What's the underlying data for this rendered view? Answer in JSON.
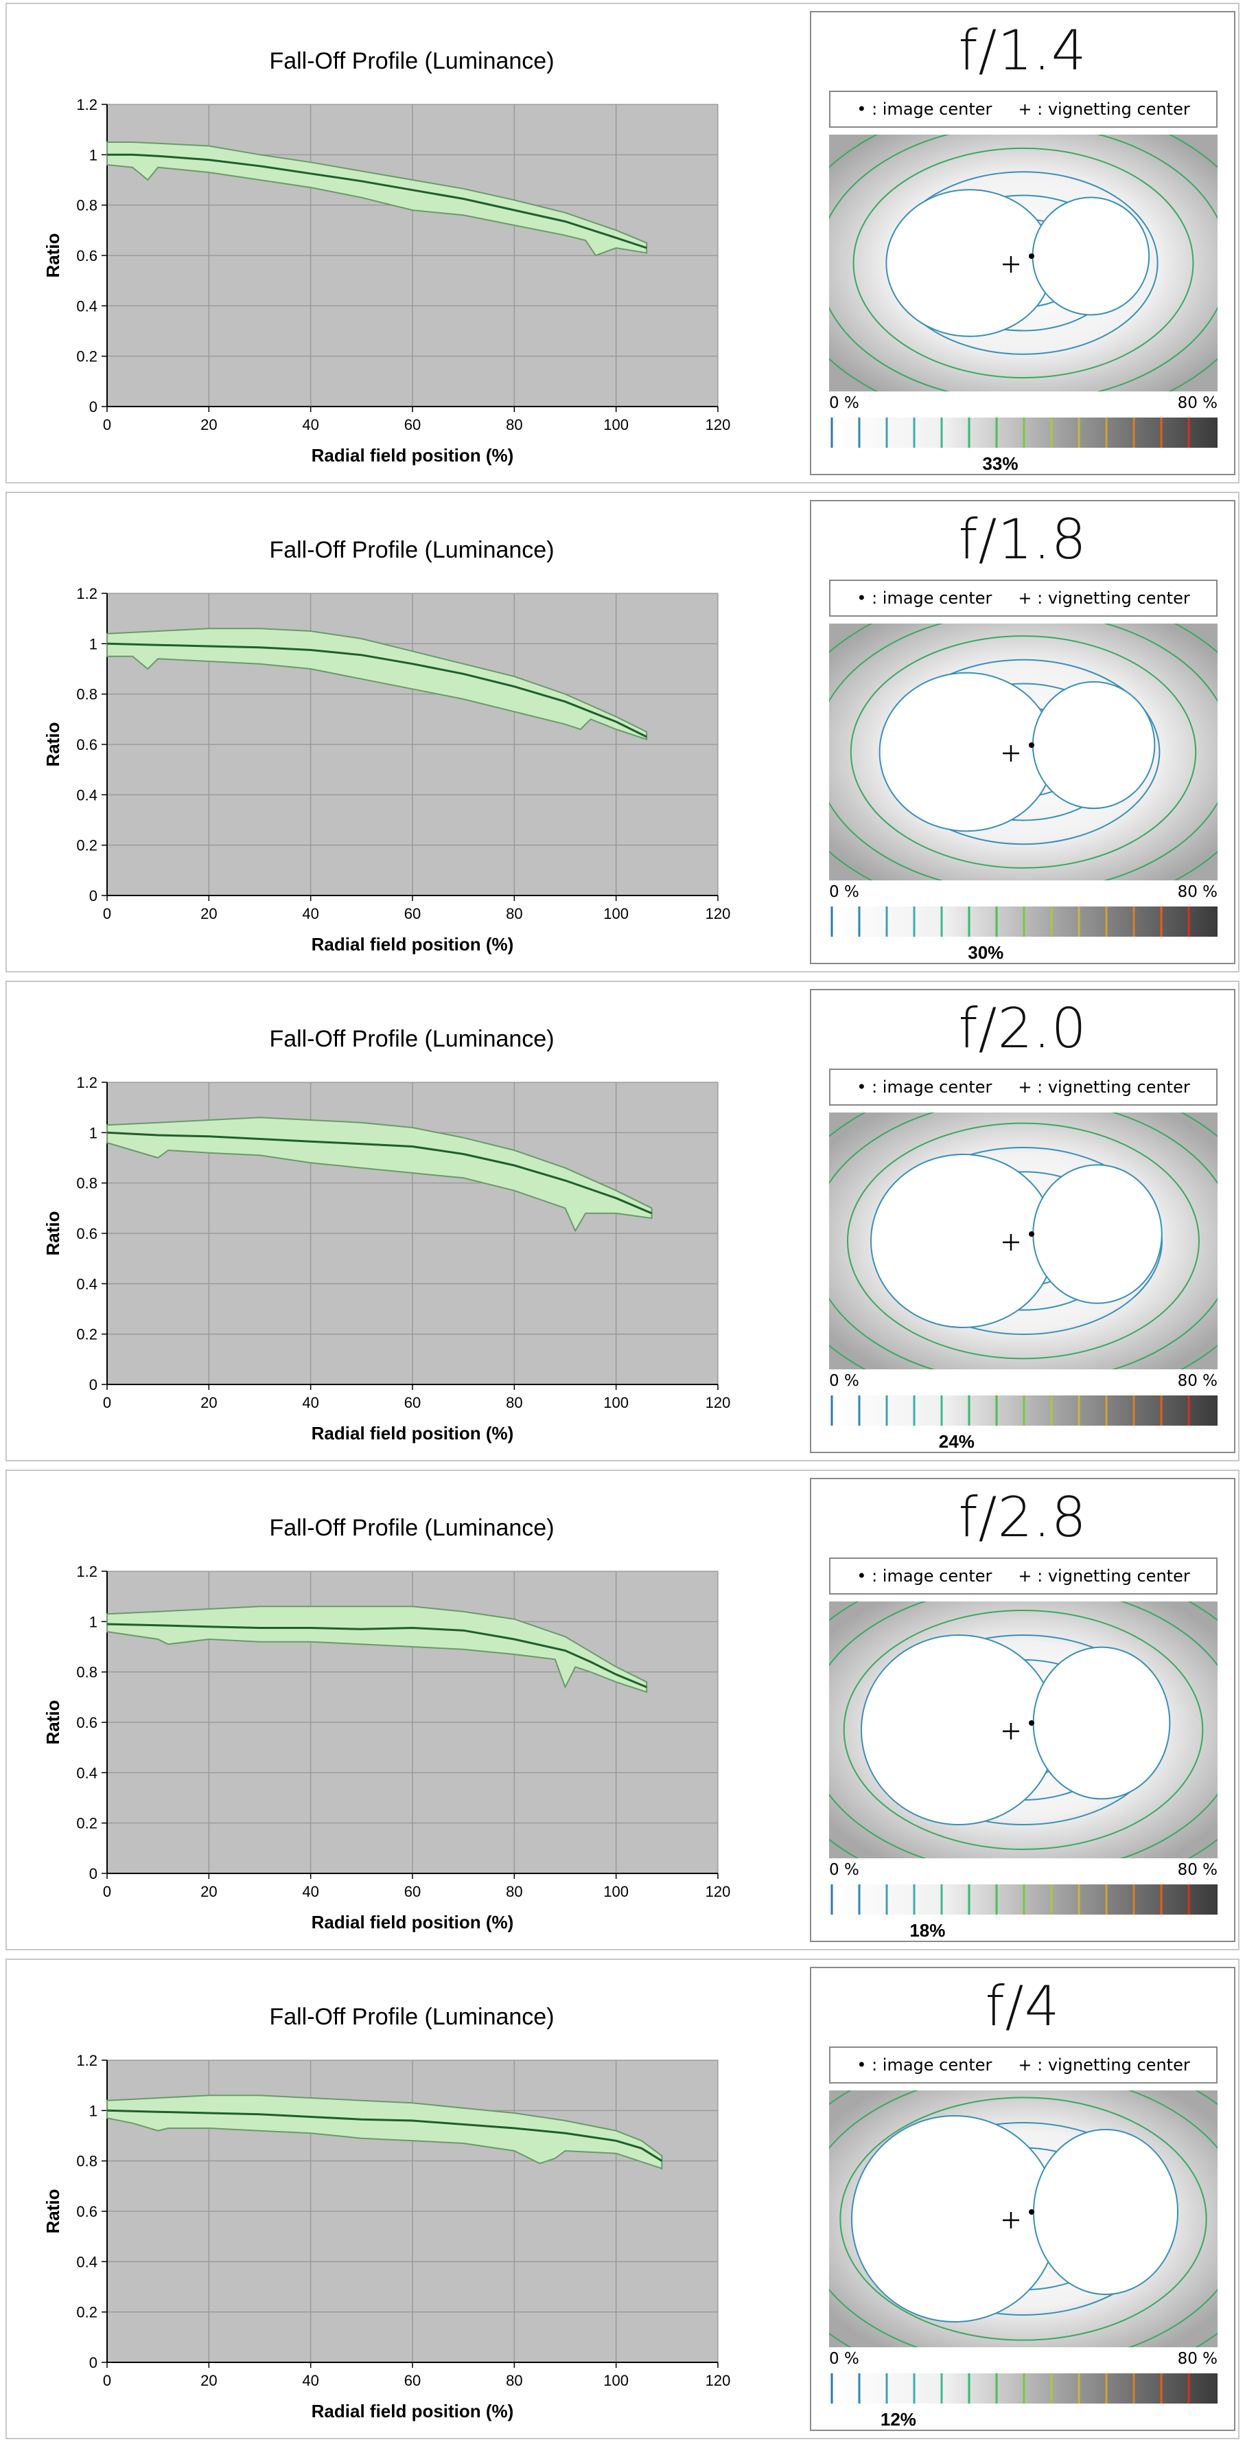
{
  "common": {
    "chart_title": "Fall-Off Profile (Luminance)",
    "xlabel": "Radial field position (%)",
    "ylabel": "Ratio",
    "legend_image_center": "• : image center",
    "legend_vignetting_center": "+ : vignetting center",
    "scale_min": "0 %",
    "scale_max": "80 %",
    "colors": {
      "plot_bg": "#c0c0c0",
      "grid": "#9a9a9a",
      "band_fill": "#c8ecc0",
      "band_edge": "#6a9a6a",
      "curve": "#1e5e2e",
      "contour_blue": "#3a8fb8",
      "contour_green": "#3aa860"
    }
  },
  "panels": [
    {
      "fnumber": "f/1.4",
      "vignetting": "33%",
      "chart_data": {
        "type": "line",
        "title": "Fall-Off Profile (Luminance)",
        "xlabel": "Radial field position (%)",
        "ylabel": "Ratio",
        "xlim": [
          0,
          120
        ],
        "ylim": [
          0,
          1.2
        ],
        "xticks": [
          0,
          20,
          40,
          60,
          80,
          100,
          120
        ],
        "yticks": [
          0,
          0.2,
          0.4,
          0.6,
          0.8,
          1,
          1.2
        ],
        "grid": true,
        "series": [
          {
            "role": "mean",
            "x": [
              0,
              5,
              10,
              20,
              30,
              40,
              50,
              60,
              70,
              80,
              90,
              100,
              106
            ],
            "y": [
              1.0,
              1.0,
              0.995,
              0.98,
              0.955,
              0.925,
              0.895,
              0.86,
              0.825,
              0.78,
              0.735,
              0.67,
              0.63
            ]
          },
          {
            "role": "upper",
            "x": [
              0,
              5,
              10,
              20,
              30,
              40,
              50,
              60,
              70,
              80,
              90,
              100,
              106
            ],
            "y": [
              1.05,
              1.05,
              1.045,
              1.035,
              1.0,
              0.97,
              0.935,
              0.9,
              0.865,
              0.82,
              0.77,
              0.7,
              0.65
            ]
          },
          {
            "role": "lower",
            "x": [
              0,
              5,
              8,
              10,
              20,
              30,
              40,
              50,
              60,
              70,
              80,
              90,
              94,
              96,
              100,
              106
            ],
            "y": [
              0.96,
              0.95,
              0.9,
              0.95,
              0.93,
              0.9,
              0.87,
              0.83,
              0.78,
              0.76,
              0.72,
              0.68,
              0.66,
              0.6,
              0.63,
              0.61
            ]
          }
        ]
      }
    },
    {
      "fnumber": "f/1.8",
      "vignetting": "30%",
      "chart_data": {
        "type": "line",
        "title": "Fall-Off Profile (Luminance)",
        "xlabel": "Radial field position (%)",
        "ylabel": "Ratio",
        "xlim": [
          0,
          120
        ],
        "ylim": [
          0,
          1.2
        ],
        "xticks": [
          0,
          20,
          40,
          60,
          80,
          100,
          120
        ],
        "yticks": [
          0,
          0.2,
          0.4,
          0.6,
          0.8,
          1,
          1.2
        ],
        "grid": true,
        "series": [
          {
            "role": "mean",
            "x": [
              0,
              10,
              20,
              30,
              40,
              50,
              60,
              70,
              80,
              90,
              100,
              106
            ],
            "y": [
              1.0,
              0.995,
              0.99,
              0.985,
              0.975,
              0.955,
              0.92,
              0.88,
              0.83,
              0.77,
              0.69,
              0.63
            ]
          },
          {
            "role": "upper",
            "x": [
              0,
              10,
              20,
              30,
              40,
              50,
              60,
              70,
              80,
              90,
              100,
              106
            ],
            "y": [
              1.04,
              1.05,
              1.06,
              1.06,
              1.05,
              1.02,
              0.97,
              0.92,
              0.87,
              0.8,
              0.71,
              0.65
            ]
          },
          {
            "role": "lower",
            "x": [
              0,
              5,
              8,
              10,
              20,
              30,
              40,
              50,
              60,
              70,
              80,
              90,
              93,
              95,
              100,
              106
            ],
            "y": [
              0.95,
              0.95,
              0.9,
              0.94,
              0.93,
              0.92,
              0.9,
              0.86,
              0.82,
              0.78,
              0.73,
              0.68,
              0.66,
              0.7,
              0.66,
              0.62
            ]
          }
        ]
      }
    },
    {
      "fnumber": "f/2.0",
      "vignetting": "24%",
      "chart_data": {
        "type": "line",
        "title": "Fall-Off Profile (Luminance)",
        "xlabel": "Radial field position (%)",
        "ylabel": "Ratio",
        "xlim": [
          0,
          120
        ],
        "ylim": [
          0,
          1.2
        ],
        "xticks": [
          0,
          20,
          40,
          60,
          80,
          100,
          120
        ],
        "yticks": [
          0,
          0.2,
          0.4,
          0.6,
          0.8,
          1,
          1.2
        ],
        "grid": true,
        "series": [
          {
            "role": "mean",
            "x": [
              0,
              10,
              20,
              30,
              40,
              50,
              60,
              70,
              80,
              90,
              100,
              107
            ],
            "y": [
              1.0,
              0.99,
              0.985,
              0.975,
              0.965,
              0.955,
              0.945,
              0.915,
              0.87,
              0.81,
              0.74,
              0.68
            ]
          },
          {
            "role": "upper",
            "x": [
              0,
              10,
              20,
              30,
              40,
              50,
              60,
              70,
              80,
              90,
              100,
              107
            ],
            "y": [
              1.03,
              1.04,
              1.05,
              1.06,
              1.05,
              1.04,
              1.02,
              0.98,
              0.93,
              0.86,
              0.77,
              0.7
            ]
          },
          {
            "role": "lower",
            "x": [
              0,
              5,
              10,
              12,
              20,
              30,
              40,
              50,
              60,
              70,
              80,
              90,
              92,
              94,
              100,
              107
            ],
            "y": [
              0.96,
              0.93,
              0.9,
              0.93,
              0.92,
              0.91,
              0.88,
              0.86,
              0.84,
              0.82,
              0.77,
              0.7,
              0.61,
              0.68,
              0.68,
              0.66
            ]
          }
        ]
      }
    },
    {
      "fnumber": "f/2.8",
      "vignetting": "18%",
      "chart_data": {
        "type": "line",
        "title": "Fall-Off Profile (Luminance)",
        "xlabel": "Radial field position (%)",
        "ylabel": "Ratio",
        "xlim": [
          0,
          120
        ],
        "ylim": [
          0,
          1.2
        ],
        "xticks": [
          0,
          20,
          40,
          60,
          80,
          100,
          120
        ],
        "yticks": [
          0,
          0.2,
          0.4,
          0.6,
          0.8,
          1,
          1.2
        ],
        "grid": true,
        "series": [
          {
            "role": "mean",
            "x": [
              0,
              10,
              20,
              30,
              40,
              50,
              60,
              70,
              80,
              90,
              95,
              100,
              106
            ],
            "y": [
              0.99,
              0.985,
              0.98,
              0.975,
              0.975,
              0.97,
              0.975,
              0.965,
              0.93,
              0.885,
              0.84,
              0.79,
              0.74
            ]
          },
          {
            "role": "upper",
            "x": [
              0,
              10,
              20,
              30,
              40,
              50,
              60,
              70,
              80,
              90,
              95,
              100,
              106
            ],
            "y": [
              1.03,
              1.04,
              1.05,
              1.06,
              1.06,
              1.06,
              1.06,
              1.04,
              1.01,
              0.94,
              0.88,
              0.82,
              0.76
            ]
          },
          {
            "role": "lower",
            "x": [
              0,
              10,
              12,
              20,
              30,
              40,
              50,
              60,
              70,
              80,
              88,
              90,
              92,
              95,
              100,
              106
            ],
            "y": [
              0.96,
              0.93,
              0.91,
              0.93,
              0.92,
              0.92,
              0.91,
              0.9,
              0.89,
              0.87,
              0.85,
              0.74,
              0.82,
              0.8,
              0.76,
              0.72
            ]
          }
        ]
      }
    },
    {
      "fnumber": "f/4",
      "vignetting": "12%",
      "chart_data": {
        "type": "line",
        "title": "Fall-Off Profile (Luminance)",
        "xlabel": "Radial field position (%)",
        "ylabel": "Ratio",
        "xlim": [
          0,
          120
        ],
        "ylim": [
          0,
          1.2
        ],
        "xticks": [
          0,
          20,
          40,
          60,
          80,
          100,
          120
        ],
        "yticks": [
          0,
          0.2,
          0.4,
          0.6,
          0.8,
          1,
          1.2
        ],
        "grid": true,
        "series": [
          {
            "role": "mean",
            "x": [
              0,
              10,
              20,
              30,
              40,
              50,
              60,
              70,
              80,
              90,
              100,
              105,
              109
            ],
            "y": [
              1.0,
              0.995,
              0.99,
              0.985,
              0.975,
              0.965,
              0.96,
              0.945,
              0.93,
              0.91,
              0.88,
              0.85,
              0.8
            ]
          },
          {
            "role": "upper",
            "x": [
              0,
              10,
              20,
              30,
              40,
              50,
              60,
              70,
              80,
              90,
              100,
              105,
              109
            ],
            "y": [
              1.04,
              1.05,
              1.06,
              1.06,
              1.05,
              1.04,
              1.03,
              1.01,
              0.99,
              0.96,
              0.92,
              0.88,
              0.82
            ]
          },
          {
            "role": "lower",
            "x": [
              0,
              5,
              10,
              12,
              20,
              30,
              40,
              50,
              60,
              70,
              80,
              85,
              88,
              90,
              100,
              109
            ],
            "y": [
              0.97,
              0.95,
              0.92,
              0.93,
              0.93,
              0.92,
              0.91,
              0.89,
              0.88,
              0.87,
              0.84,
              0.79,
              0.81,
              0.84,
              0.83,
              0.77
            ]
          }
        ]
      }
    }
  ]
}
